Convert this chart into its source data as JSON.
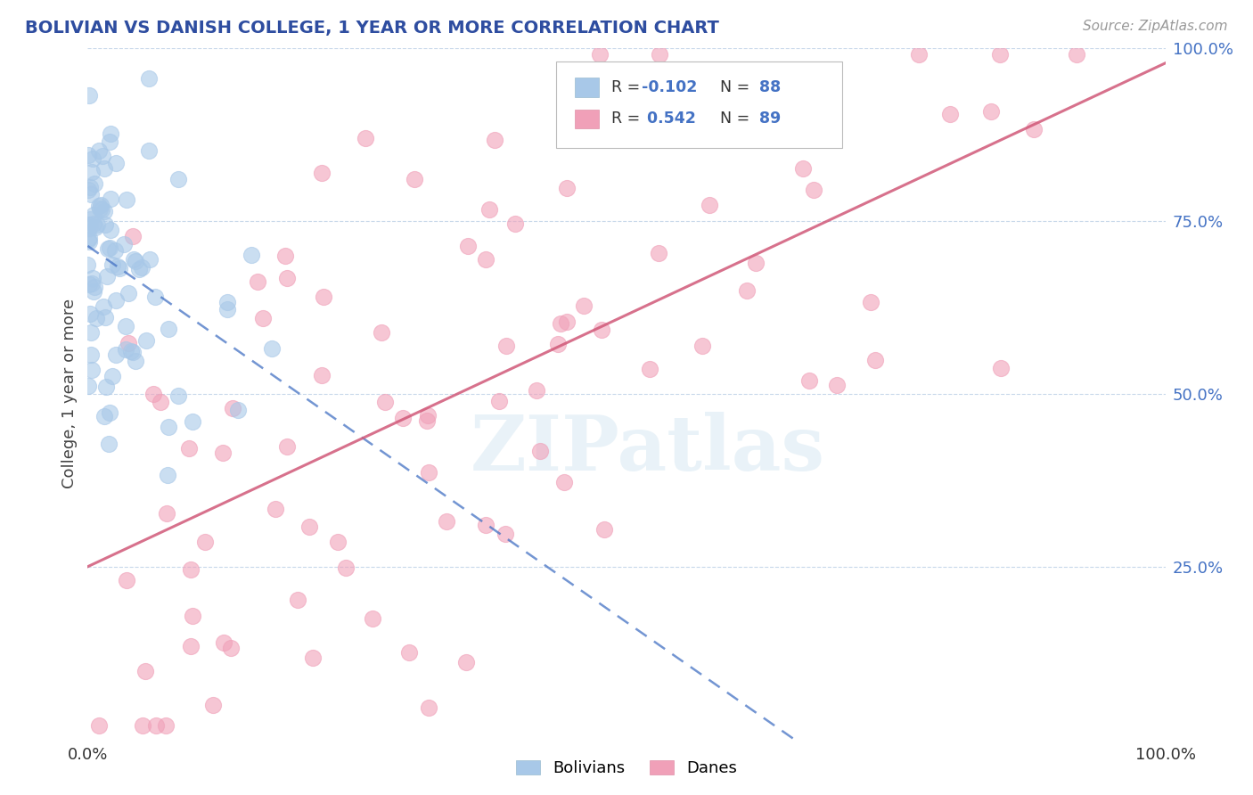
{
  "title": "BOLIVIAN VS DANISH COLLEGE, 1 YEAR OR MORE CORRELATION CHART",
  "source": "Source: ZipAtlas.com",
  "ylabel": "College, 1 year or more",
  "xlim": [
    0.0,
    1.0
  ],
  "ylim": [
    0.0,
    1.0
  ],
  "right_yticks": [
    0.25,
    0.5,
    0.75,
    1.0
  ],
  "right_yticklabels": [
    "25.0%",
    "50.0%",
    "75.0%",
    "100.0%"
  ],
  "xtick_positions": [
    0.0,
    1.0
  ],
  "xtick_labels": [
    "0.0%",
    "100.0%"
  ],
  "watermark": "ZIPatlas",
  "bolivians_color": "#A8C8E8",
  "danes_color": "#F0A0B8",
  "bolivia_line_color": "#4472C4",
  "danes_line_color": "#D05878",
  "background_color": "#FFFFFF",
  "grid_color": "#C8D8E8",
  "title_color": "#2E4DA0",
  "source_color": "#999999",
  "right_tick_color": "#4472C4",
  "seed_b": 10,
  "seed_d": 20,
  "n_bolivians": 88,
  "n_danes": 89,
  "R_bolivians": -0.102,
  "R_danes": 0.542,
  "legend_R1": "R = -0.102",
  "legend_N1": "N = 88",
  "legend_R2": "R =  0.542",
  "legend_N2": "N = 89"
}
